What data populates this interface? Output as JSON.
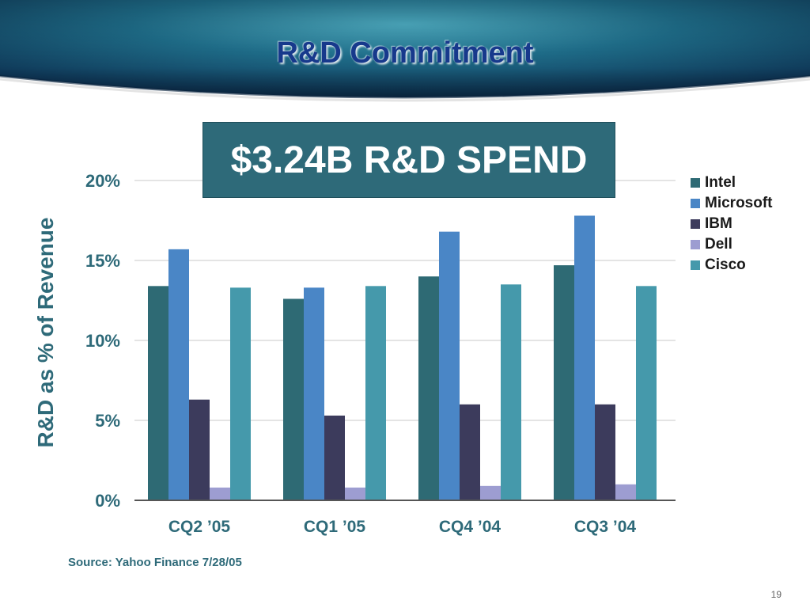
{
  "slide": {
    "title": "R&D Commitment",
    "callout": "$3.24B R&D SPEND",
    "source": "Source: Yahoo Finance 7/28/05",
    "page_number": "19"
  },
  "chart_data": {
    "type": "bar",
    "title": "",
    "xlabel": "",
    "ylabel": "R&D as % of Revenue",
    "ylim": [
      0,
      20
    ],
    "yticks": [
      0,
      5,
      10,
      15,
      20
    ],
    "ytick_labels": [
      "0%",
      "5%",
      "10%",
      "15%",
      "20%"
    ],
    "categories": [
      "CQ2 ’05",
      "CQ1 ’05",
      "CQ4 ’04",
      "CQ3 ’04"
    ],
    "grid": true,
    "legend_position": "right",
    "series": [
      {
        "name": "Intel",
        "color": "#2e6a74",
        "values": [
          13.4,
          12.6,
          14.0,
          14.7
        ]
      },
      {
        "name": "Microsoft",
        "color": "#4a86c6",
        "values": [
          15.7,
          13.3,
          16.8,
          17.8
        ]
      },
      {
        "name": "IBM",
        "color": "#3c3b5c",
        "values": [
          6.3,
          5.3,
          6.0,
          6.0
        ]
      },
      {
        "name": "Dell",
        "color": "#9d9dd1",
        "values": [
          0.8,
          0.8,
          0.9,
          1.0
        ]
      },
      {
        "name": "Cisco",
        "color": "#4599ab",
        "values": [
          13.3,
          13.4,
          13.5,
          13.4
        ]
      }
    ]
  }
}
